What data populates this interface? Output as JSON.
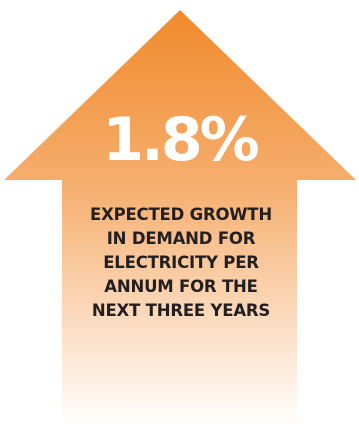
{
  "stat": {
    "value": "1.8%",
    "caption_lines": [
      "EXPECTED GROWTH",
      "IN DEMAND FOR",
      "ELECTRICITY PER",
      "ANNUM FOR THE",
      "NEXT THREE YEARS"
    ]
  },
  "colors": {
    "arrow_top": "#f08a2c",
    "arrow_mid": "#f6ae6e",
    "arrow_bottom": "#ffffff",
    "value_text": "#ffffff",
    "caption_text": "#231f20"
  },
  "icon": "up-arrow-icon"
}
